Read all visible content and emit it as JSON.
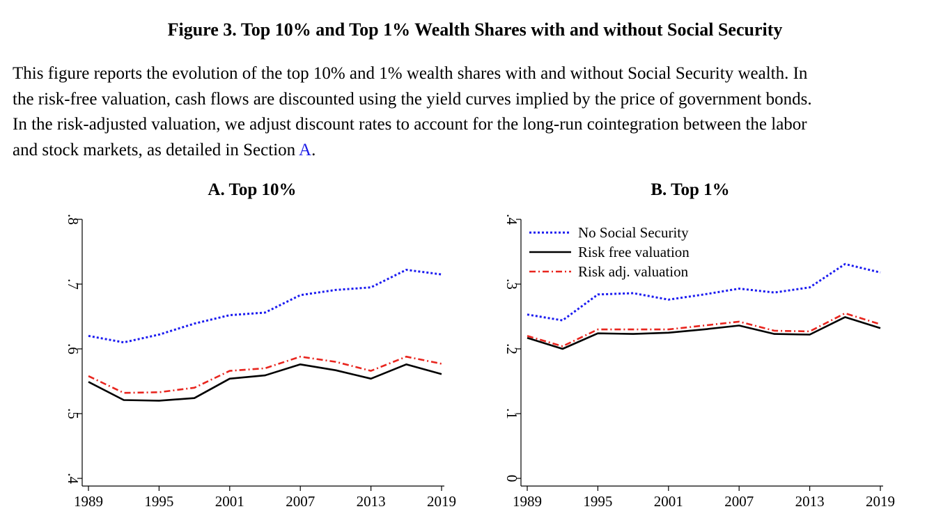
{
  "figure": {
    "title": "Figure 3. Top 10% and Top 1% Wealth Shares with and without Social Security",
    "caption_lines": [
      "This figure reports the evolution of the top 10% and 1% wealth shares with and without Social Security wealth. In",
      "the risk-free valuation, cash flows are discounted using the yield curves implied by the price of government bonds.",
      "In the risk-adjusted valuation, we adjust discount rates to account for the long-run cointegration between the labor"
    ],
    "caption_last_prefix": "and stock markets, as detailed in Section ",
    "caption_link": "A",
    "caption_last_suffix": "."
  },
  "colors": {
    "no_social_security": "#1c1cf0",
    "risk_free": "#000000",
    "risk_adj": "#e8251e",
    "axis": "#000000"
  },
  "chart_data": [
    {
      "type": "line",
      "title": "A. Top 10%",
      "xlabel": "",
      "ylabel": "",
      "x": [
        1989,
        1992,
        1995,
        1998,
        2001,
        2004,
        2007,
        2010,
        2013,
        2016,
        2019
      ],
      "xticks": [
        1989,
        1995,
        2001,
        2007,
        2013,
        2019
      ],
      "xtick_labels": [
        "1989",
        "1995",
        "2001",
        "2007",
        "2013",
        "2019"
      ],
      "xlim": [
        1989,
        2019
      ],
      "yticks": [
        0.4,
        0.5,
        0.6,
        0.7,
        0.8
      ],
      "ytick_labels": [
        ".4",
        ".5",
        ".6",
        ".7",
        ".8"
      ],
      "ylim": [
        0.4,
        0.8
      ],
      "grid": false,
      "legend": false,
      "series": [
        {
          "name": "No Social Security",
          "style": "dotted",
          "values": [
            0.62,
            0.61,
            0.622,
            0.639,
            0.652,
            0.656,
            0.683,
            0.691,
            0.695,
            0.722,
            0.715
          ]
        },
        {
          "name": "Risk free valuation",
          "style": "solid",
          "values": [
            0.549,
            0.521,
            0.52,
            0.524,
            0.554,
            0.559,
            0.576,
            0.567,
            0.554,
            0.576,
            0.561
          ]
        },
        {
          "name": "Risk adj. valuation",
          "style": "dashdot",
          "values": [
            0.558,
            0.532,
            0.533,
            0.54,
            0.566,
            0.57,
            0.588,
            0.58,
            0.566,
            0.588,
            0.577
          ]
        }
      ]
    },
    {
      "type": "line",
      "title": "B. Top 1%",
      "xlabel": "",
      "ylabel": "",
      "x": [
        1989,
        1992,
        1995,
        1998,
        2001,
        2004,
        2007,
        2010,
        2013,
        2016,
        2019
      ],
      "xticks": [
        1989,
        1995,
        2001,
        2007,
        2013,
        2019
      ],
      "xtick_labels": [
        "1989",
        "1995",
        "2001",
        "2007",
        "2013",
        "2019"
      ],
      "xlim": [
        1989,
        2019
      ],
      "yticks": [
        0,
        0.1,
        0.2,
        0.3,
        0.4
      ],
      "ytick_labels": [
        "0",
        ".1",
        ".2",
        ".3",
        ".4"
      ],
      "ylim": [
        0,
        0.4
      ],
      "grid": false,
      "legend": true,
      "legend_position": "top-left",
      "series": [
        {
          "name": "No Social Security",
          "style": "dotted",
          "values": [
            0.253,
            0.244,
            0.284,
            0.286,
            0.276,
            0.284,
            0.293,
            0.287,
            0.295,
            0.331,
            0.318
          ]
        },
        {
          "name": "Risk free valuation",
          "style": "solid",
          "values": [
            0.217,
            0.2,
            0.224,
            0.223,
            0.225,
            0.23,
            0.236,
            0.223,
            0.222,
            0.249,
            0.232
          ]
        },
        {
          "name": "Risk adj. valuation",
          "style": "dashdot",
          "values": [
            0.22,
            0.204,
            0.23,
            0.23,
            0.23,
            0.236,
            0.242,
            0.228,
            0.227,
            0.255,
            0.238
          ]
        }
      ]
    }
  ]
}
